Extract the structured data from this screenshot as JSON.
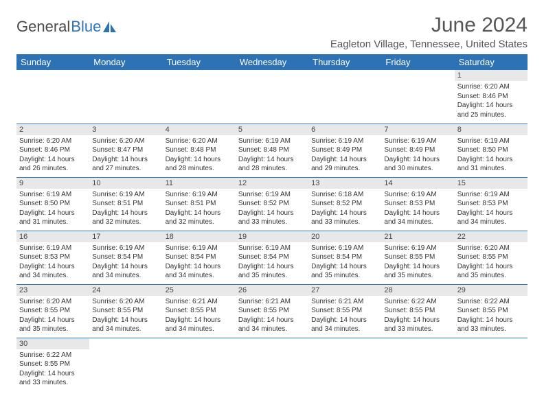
{
  "logo": {
    "text1": "General",
    "text2": "Blue"
  },
  "title": "June 2024",
  "location": "Eagleton Village, Tennessee, United States",
  "colors": {
    "headerBg": "#2d72b5",
    "dayNumBg": "#e8e8e8",
    "border": "#2d72b5",
    "text": "#333333"
  },
  "weekdays": [
    "Sunday",
    "Monday",
    "Tuesday",
    "Wednesday",
    "Thursday",
    "Friday",
    "Saturday"
  ],
  "weeks": [
    [
      {
        "empty": true
      },
      {
        "empty": true
      },
      {
        "empty": true
      },
      {
        "empty": true
      },
      {
        "empty": true
      },
      {
        "empty": true
      },
      {
        "n": "1",
        "sr": "Sunrise: 6:20 AM",
        "ss": "Sunset: 8:46 PM",
        "d1": "Daylight: 14 hours",
        "d2": "and 25 minutes."
      }
    ],
    [
      {
        "n": "2",
        "sr": "Sunrise: 6:20 AM",
        "ss": "Sunset: 8:46 PM",
        "d1": "Daylight: 14 hours",
        "d2": "and 26 minutes."
      },
      {
        "n": "3",
        "sr": "Sunrise: 6:20 AM",
        "ss": "Sunset: 8:47 PM",
        "d1": "Daylight: 14 hours",
        "d2": "and 27 minutes."
      },
      {
        "n": "4",
        "sr": "Sunrise: 6:20 AM",
        "ss": "Sunset: 8:48 PM",
        "d1": "Daylight: 14 hours",
        "d2": "and 28 minutes."
      },
      {
        "n": "5",
        "sr": "Sunrise: 6:19 AM",
        "ss": "Sunset: 8:48 PM",
        "d1": "Daylight: 14 hours",
        "d2": "and 28 minutes."
      },
      {
        "n": "6",
        "sr": "Sunrise: 6:19 AM",
        "ss": "Sunset: 8:49 PM",
        "d1": "Daylight: 14 hours",
        "d2": "and 29 minutes."
      },
      {
        "n": "7",
        "sr": "Sunrise: 6:19 AM",
        "ss": "Sunset: 8:49 PM",
        "d1": "Daylight: 14 hours",
        "d2": "and 30 minutes."
      },
      {
        "n": "8",
        "sr": "Sunrise: 6:19 AM",
        "ss": "Sunset: 8:50 PM",
        "d1": "Daylight: 14 hours",
        "d2": "and 31 minutes."
      }
    ],
    [
      {
        "n": "9",
        "sr": "Sunrise: 6:19 AM",
        "ss": "Sunset: 8:50 PM",
        "d1": "Daylight: 14 hours",
        "d2": "and 31 minutes."
      },
      {
        "n": "10",
        "sr": "Sunrise: 6:19 AM",
        "ss": "Sunset: 8:51 PM",
        "d1": "Daylight: 14 hours",
        "d2": "and 32 minutes."
      },
      {
        "n": "11",
        "sr": "Sunrise: 6:19 AM",
        "ss": "Sunset: 8:51 PM",
        "d1": "Daylight: 14 hours",
        "d2": "and 32 minutes."
      },
      {
        "n": "12",
        "sr": "Sunrise: 6:19 AM",
        "ss": "Sunset: 8:52 PM",
        "d1": "Daylight: 14 hours",
        "d2": "and 33 minutes."
      },
      {
        "n": "13",
        "sr": "Sunrise: 6:18 AM",
        "ss": "Sunset: 8:52 PM",
        "d1": "Daylight: 14 hours",
        "d2": "and 33 minutes."
      },
      {
        "n": "14",
        "sr": "Sunrise: 6:19 AM",
        "ss": "Sunset: 8:53 PM",
        "d1": "Daylight: 14 hours",
        "d2": "and 34 minutes."
      },
      {
        "n": "15",
        "sr": "Sunrise: 6:19 AM",
        "ss": "Sunset: 8:53 PM",
        "d1": "Daylight: 14 hours",
        "d2": "and 34 minutes."
      }
    ],
    [
      {
        "n": "16",
        "sr": "Sunrise: 6:19 AM",
        "ss": "Sunset: 8:53 PM",
        "d1": "Daylight: 14 hours",
        "d2": "and 34 minutes."
      },
      {
        "n": "17",
        "sr": "Sunrise: 6:19 AM",
        "ss": "Sunset: 8:54 PM",
        "d1": "Daylight: 14 hours",
        "d2": "and 34 minutes."
      },
      {
        "n": "18",
        "sr": "Sunrise: 6:19 AM",
        "ss": "Sunset: 8:54 PM",
        "d1": "Daylight: 14 hours",
        "d2": "and 34 minutes."
      },
      {
        "n": "19",
        "sr": "Sunrise: 6:19 AM",
        "ss": "Sunset: 8:54 PM",
        "d1": "Daylight: 14 hours",
        "d2": "and 35 minutes."
      },
      {
        "n": "20",
        "sr": "Sunrise: 6:19 AM",
        "ss": "Sunset: 8:54 PM",
        "d1": "Daylight: 14 hours",
        "d2": "and 35 minutes."
      },
      {
        "n": "21",
        "sr": "Sunrise: 6:19 AM",
        "ss": "Sunset: 8:55 PM",
        "d1": "Daylight: 14 hours",
        "d2": "and 35 minutes."
      },
      {
        "n": "22",
        "sr": "Sunrise: 6:20 AM",
        "ss": "Sunset: 8:55 PM",
        "d1": "Daylight: 14 hours",
        "d2": "and 35 minutes."
      }
    ],
    [
      {
        "n": "23",
        "sr": "Sunrise: 6:20 AM",
        "ss": "Sunset: 8:55 PM",
        "d1": "Daylight: 14 hours",
        "d2": "and 35 minutes."
      },
      {
        "n": "24",
        "sr": "Sunrise: 6:20 AM",
        "ss": "Sunset: 8:55 PM",
        "d1": "Daylight: 14 hours",
        "d2": "and 34 minutes."
      },
      {
        "n": "25",
        "sr": "Sunrise: 6:21 AM",
        "ss": "Sunset: 8:55 PM",
        "d1": "Daylight: 14 hours",
        "d2": "and 34 minutes."
      },
      {
        "n": "26",
        "sr": "Sunrise: 6:21 AM",
        "ss": "Sunset: 8:55 PM",
        "d1": "Daylight: 14 hours",
        "d2": "and 34 minutes."
      },
      {
        "n": "27",
        "sr": "Sunrise: 6:21 AM",
        "ss": "Sunset: 8:55 PM",
        "d1": "Daylight: 14 hours",
        "d2": "and 34 minutes."
      },
      {
        "n": "28",
        "sr": "Sunrise: 6:22 AM",
        "ss": "Sunset: 8:55 PM",
        "d1": "Daylight: 14 hours",
        "d2": "and 33 minutes."
      },
      {
        "n": "29",
        "sr": "Sunrise: 6:22 AM",
        "ss": "Sunset: 8:55 PM",
        "d1": "Daylight: 14 hours",
        "d2": "and 33 minutes."
      }
    ],
    [
      {
        "n": "30",
        "sr": "Sunrise: 6:22 AM",
        "ss": "Sunset: 8:55 PM",
        "d1": "Daylight: 14 hours",
        "d2": "and 33 minutes."
      },
      {
        "empty": true
      },
      {
        "empty": true
      },
      {
        "empty": true
      },
      {
        "empty": true
      },
      {
        "empty": true
      },
      {
        "empty": true
      }
    ]
  ]
}
